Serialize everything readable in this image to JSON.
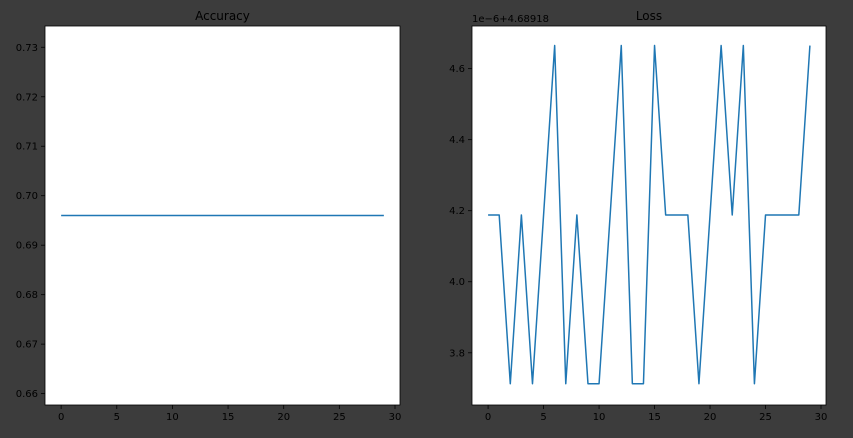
{
  "figure": {
    "background": "#3c3c3c",
    "axes_face": "#ffffff",
    "line_color": "#1f77b4",
    "text_color": "#000000"
  },
  "chart_data": [
    {
      "type": "line",
      "title": "Accuracy",
      "xlabel": "",
      "ylabel": "",
      "grid": false,
      "xlim": [
        -1.45,
        30.45
      ],
      "ylim": [
        0.6577,
        0.7343
      ],
      "xticks": [
        0,
        5,
        10,
        15,
        20,
        25,
        30
      ],
      "xtick_labels": [
        "0",
        "5",
        "10",
        "15",
        "20",
        "25",
        "30"
      ],
      "yticks": [
        0.66,
        0.67,
        0.68,
        0.69,
        0.7,
        0.71,
        0.72,
        0.73
      ],
      "ytick_labels": [
        "0.66",
        "0.67",
        "0.68",
        "0.69",
        "0.70",
        "0.71",
        "0.72",
        "0.73"
      ],
      "series": [
        {
          "color": "#1f77b4",
          "x": [
            0,
            1,
            2,
            3,
            4,
            5,
            6,
            7,
            8,
            9,
            10,
            11,
            12,
            13,
            14,
            15,
            16,
            17,
            18,
            19,
            20,
            21,
            22,
            23,
            24,
            25,
            26,
            27,
            28,
            29
          ],
          "y": [
            0.696,
            0.696,
            0.696,
            0.696,
            0.696,
            0.696,
            0.696,
            0.696,
            0.696,
            0.696,
            0.696,
            0.696,
            0.696,
            0.696,
            0.696,
            0.696,
            0.696,
            0.696,
            0.696,
            0.696,
            0.696,
            0.696,
            0.696,
            0.696,
            0.696,
            0.696,
            0.696,
            0.696,
            0.696,
            0.696
          ]
        }
      ]
    },
    {
      "type": "line",
      "title": "Loss",
      "xlabel": "",
      "ylabel": "",
      "grid": false,
      "offset_label": "1e−6+4.68918",
      "xlim": [
        -1.45,
        30.45
      ],
      "ylim": [
        3.653,
        4.72
      ],
      "xticks": [
        0,
        5,
        10,
        15,
        20,
        25,
        30
      ],
      "xtick_labels": [
        "0",
        "5",
        "10",
        "15",
        "20",
        "25",
        "30"
      ],
      "yticks": [
        3.8,
        4.0,
        4.2,
        4.4,
        4.6
      ],
      "ytick_labels": [
        "3.8",
        "4.0",
        "4.2",
        "4.4",
        "4.6"
      ],
      "series": [
        {
          "color": "#1f77b4",
          "x": [
            0,
            1,
            2,
            3,
            4,
            5,
            6,
            7,
            8,
            9,
            10,
            11,
            12,
            13,
            14,
            15,
            16,
            17,
            18,
            19,
            20,
            21,
            22,
            23,
            24,
            25,
            26,
            27,
            28,
            29
          ],
          "y": [
            4.188,
            4.188,
            3.713,
            4.188,
            3.713,
            4.188,
            4.665,
            3.713,
            4.188,
            3.713,
            3.713,
            4.188,
            4.665,
            3.713,
            3.713,
            4.665,
            4.188,
            4.188,
            4.188,
            3.713,
            4.188,
            4.665,
            4.188,
            4.665,
            3.713,
            4.188,
            4.188,
            4.188,
            4.188,
            4.665
          ]
        }
      ]
    }
  ]
}
